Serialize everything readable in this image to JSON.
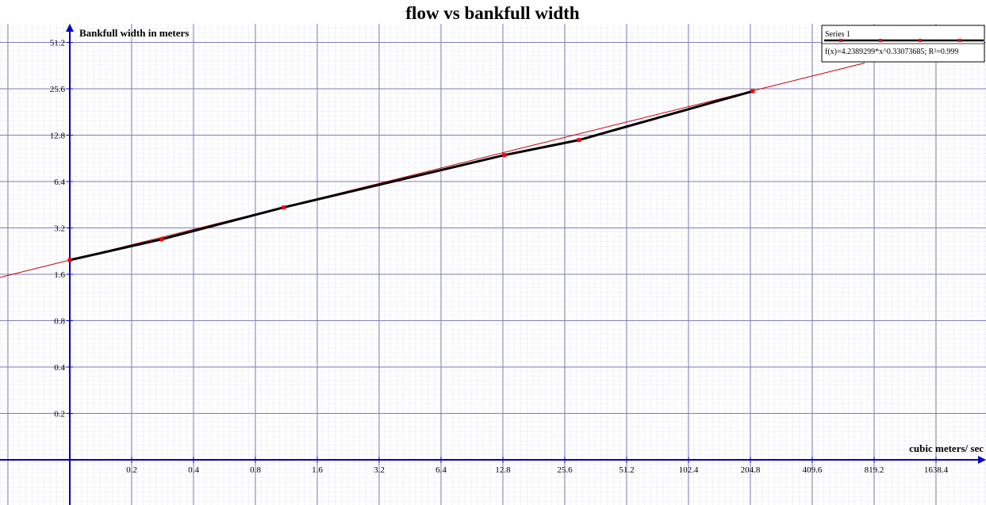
{
  "chart_data": {
    "type": "scatter",
    "title": "flow vs bankfull width",
    "xlabel": "cubic meters/ sec",
    "ylabel": "Bankfull width in meters",
    "x_scale": "log2",
    "y_scale": "log2",
    "xlim": [
      0.1,
      3276.8
    ],
    "ylim": [
      0.1,
      51.2
    ],
    "x_ticks": [
      0.2,
      0.4,
      0.8,
      1.6,
      3.2,
      6.4,
      12.8,
      25.6,
      51.2,
      102.4,
      204.8,
      409.6,
      819.2,
      1638.4
    ],
    "x_tick_labels": [
      "0.2",
      "0.4",
      "0.8",
      "1.6",
      "3.2",
      "6.4",
      "12.8",
      "25.6",
      "51.2",
      "102.4",
      "204.8",
      "409.6",
      "819.2",
      "1638.4"
    ],
    "y_ticks": [
      0.2,
      0.4,
      0.8,
      1.6,
      3.2,
      6.4,
      12.8,
      25.6,
      51.2
    ],
    "y_tick_labels": [
      "0.2",
      "0.4",
      "0.8",
      "1.6",
      "3.2",
      "6.4",
      "12.8",
      "25.6",
      "51.2"
    ],
    "grid": true,
    "legend_position": "top-right",
    "series": [
      {
        "name": "Series 1",
        "x": [
          0.1,
          0.28,
          1.1,
          13.0,
          30.0,
          210.0
        ],
        "y": [
          1.98,
          2.7,
          4.35,
          9.5,
          11.9,
          24.7
        ],
        "color": "#ff0000",
        "line_color": "#000000"
      }
    ],
    "trendline": {
      "label": "f(x)=4.2389299*x^0.33073685; R²=0.999",
      "coefficient": 4.2389299,
      "exponent": 0.33073685,
      "r_squared": 0.999,
      "color": "#c00000"
    }
  },
  "colors": {
    "grid_major": "#8080c0",
    "grid_minor": "#b0b0d8",
    "axis": "#0000c0",
    "point": "#ff0000"
  }
}
